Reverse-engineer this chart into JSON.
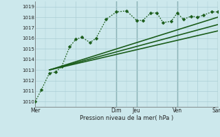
{
  "title": "",
  "xlabel": "Pression niveau de la mer( hPa )",
  "bg_color": "#cce8ec",
  "grid_color": "#aacdd4",
  "line_color": "#1a5c1a",
  "vline_color": "#4a7a7a",
  "ylim": [
    1009.5,
    1019.5
  ],
  "yticks": [
    1010,
    1011,
    1012,
    1013,
    1014,
    1015,
    1016,
    1017,
    1018,
    1019
  ],
  "day_labels": [
    "Mer",
    "",
    "Dim",
    "Jeu",
    "",
    "Ven",
    "",
    "Sam"
  ],
  "day_positions": [
    0,
    2,
    4,
    5,
    6,
    7,
    8,
    9
  ],
  "vline_positions": [
    4,
    5,
    7,
    9
  ],
  "series": [
    {
      "x": [
        0,
        0.3,
        0.7,
        1.0,
        1.3,
        1.7,
        2.0,
        2.3,
        2.7,
        3.0,
        3.5,
        4.0,
        4.5,
        5.0,
        5.3,
        5.7,
        6.0,
        6.3,
        6.7,
        7.0,
        7.3,
        7.7,
        8.0,
        8.3,
        8.7,
        9.0
      ],
      "y": [
        1010.0,
        1011.1,
        1012.7,
        1012.8,
        1013.3,
        1015.2,
        1015.9,
        1016.1,
        1015.6,
        1016.0,
        1017.8,
        1018.5,
        1018.6,
        1017.7,
        1017.7,
        1018.4,
        1018.4,
        1017.5,
        1017.6,
        1018.4,
        1017.8,
        1018.1,
        1018.0,
        1018.2,
        1018.5,
        1018.5
      ],
      "marker": "D",
      "markersize": 2.5,
      "linewidth": 0.9,
      "linestyle": "dotted",
      "zorder": 5
    },
    {
      "x": [
        0.7,
        9.0
      ],
      "y": [
        1013.0,
        1018.0
      ],
      "marker": null,
      "markersize": 0,
      "linewidth": 1.2,
      "linestyle": "solid",
      "zorder": 3
    },
    {
      "x": [
        0.7,
        9.0
      ],
      "y": [
        1013.0,
        1017.3
      ],
      "marker": null,
      "markersize": 0,
      "linewidth": 1.2,
      "linestyle": "solid",
      "zorder": 3
    },
    {
      "x": [
        0.7,
        9.0
      ],
      "y": [
        1013.0,
        1016.7
      ],
      "marker": null,
      "markersize": 0,
      "linewidth": 1.2,
      "linestyle": "solid",
      "zorder": 3
    }
  ]
}
